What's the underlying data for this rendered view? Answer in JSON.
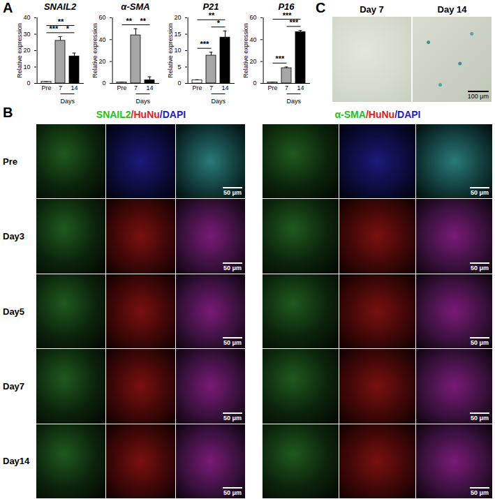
{
  "panel_labels": [
    "A",
    "B",
    "C"
  ],
  "chart_data": [
    {
      "type": "bar",
      "title": "SNAIL2",
      "categories": [
        "Pre",
        "7",
        "14"
      ],
      "values": [
        1,
        26,
        16.5
      ],
      "errors": [
        0.2,
        2.5,
        2
      ],
      "colors": [
        "#ffffff",
        "#a6a6a6",
        "#000000"
      ],
      "ylim": [
        0,
        40
      ],
      "yticks": [
        0,
        10,
        20,
        30,
        40
      ],
      "ylabel": "Relative expression",
      "xlabel": "Days",
      "significance": [
        {
          "from": "Pre",
          "to": "7",
          "label": "***"
        },
        {
          "from": "Pre",
          "to": "14",
          "label": "**"
        },
        {
          "from": "7",
          "to": "14",
          "label": "*"
        }
      ]
    },
    {
      "type": "bar",
      "title": "α-SMA",
      "categories": [
        "Pre",
        "7",
        "14"
      ],
      "values": [
        1,
        44,
        3
      ],
      "errors": [
        0.2,
        6,
        3
      ],
      "colors": [
        "#ffffff",
        "#a6a6a6",
        "#000000"
      ],
      "ylim": [
        0,
        60
      ],
      "yticks": [
        0,
        20,
        40,
        60
      ],
      "ylabel": "Relative expression",
      "xlabel": "Days",
      "significance": [
        {
          "from": "Pre",
          "to": "7",
          "label": "**"
        },
        {
          "from": "7",
          "to": "14",
          "label": "**"
        }
      ]
    },
    {
      "type": "bar",
      "title": "P21",
      "categories": [
        "Pre",
        "7",
        "14"
      ],
      "values": [
        1,
        8.5,
        14
      ],
      "errors": [
        0.1,
        1,
        2
      ],
      "colors": [
        "#ffffff",
        "#a6a6a6",
        "#000000"
      ],
      "ylim": [
        0,
        20
      ],
      "yticks": [
        0,
        5,
        10,
        15,
        20
      ],
      "ylabel": "Relative expression",
      "xlabel": "Days",
      "significance": [
        {
          "from": "Pre",
          "to": "7",
          "label": "***"
        },
        {
          "from": "Pre",
          "to": "14",
          "label": "**"
        },
        {
          "from": "7",
          "to": "14",
          "label": "*"
        }
      ]
    },
    {
      "type": "bar",
      "title": "P16",
      "categories": [
        "Pre",
        "7",
        "14"
      ],
      "values": [
        1,
        14,
        47
      ],
      "errors": [
        0.2,
        1,
        1.5
      ],
      "colors": [
        "#ffffff",
        "#a6a6a6",
        "#000000"
      ],
      "ylim": [
        0,
        60
      ],
      "yticks": [
        0,
        20,
        40,
        60
      ],
      "ylabel": "Relative expression",
      "xlabel": "Days",
      "significance": [
        {
          "from": "Pre",
          "to": "7",
          "label": "***"
        },
        {
          "from": "Pre",
          "to": "14",
          "label": "***"
        },
        {
          "from": "7",
          "to": "14",
          "label": "***"
        }
      ]
    }
  ],
  "panel_b": {
    "row_labels": [
      "Pre",
      "Day3",
      "Day5",
      "Day7",
      "Day14"
    ],
    "groups": [
      {
        "stains": [
          {
            "text": "SNAIL2",
            "color": "#22c322"
          },
          {
            "text": "/HuNu",
            "color": "#e02020"
          },
          {
            "text": "/DAPI",
            "color": "#2020d0"
          }
        ]
      },
      {
        "stains": [
          {
            "text": "α-SMA",
            "color": "#22c322"
          },
          {
            "text": "/HuNu",
            "color": "#e02020"
          },
          {
            "text": "/DAPI",
            "color": "#2020d0"
          }
        ]
      }
    ],
    "scale_bar": "50 μm"
  },
  "panel_c": {
    "labels": [
      "Day 7",
      "Day 14"
    ],
    "scale_bar": "100 μm"
  }
}
